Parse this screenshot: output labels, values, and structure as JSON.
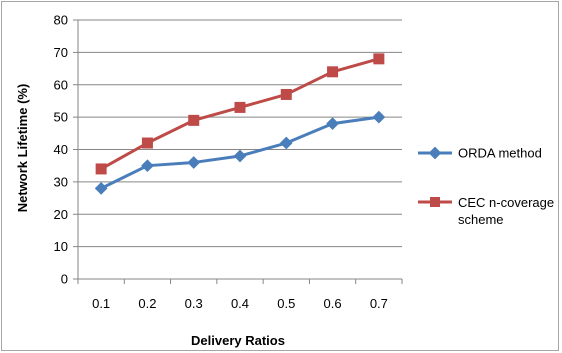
{
  "chart_data": {
    "type": "line",
    "x": [
      "0.1",
      "0.2",
      "0.3",
      "0.4",
      "0.5",
      "0.6",
      "0.7"
    ],
    "xlabel": "Delivery Ratios",
    "ylabel": "Network Lifetime (%)",
    "ylim": [
      0,
      80
    ],
    "yticks": [
      0,
      10,
      20,
      30,
      40,
      50,
      60,
      70,
      80
    ],
    "grid": "horizontal",
    "legend": "right",
    "series": [
      {
        "name": "ORDA method",
        "values": [
          28,
          35,
          36,
          38,
          42,
          48,
          50
        ],
        "color": "#4a7ebb",
        "marker": "diamond"
      },
      {
        "name_lines": [
          "CEC n-coverage",
          "scheme"
        ],
        "values": [
          34,
          42,
          49,
          53,
          57,
          64,
          68
        ],
        "color": "#be4b48",
        "marker": "square"
      }
    ]
  }
}
